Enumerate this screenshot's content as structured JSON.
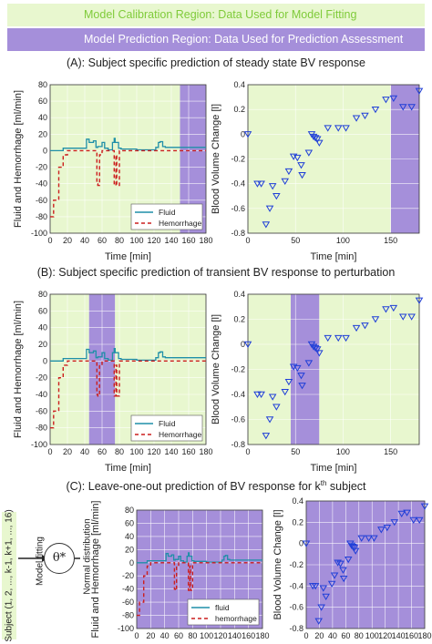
{
  "legend": {
    "calibration": "Model Calibration Region: Data Used for Model Fitting",
    "prediction": "Model Prediction Region: Data Used for Prediction Assessment"
  },
  "colors": {
    "calibration_region": "#e8f7cf",
    "prediction_region": "#a58fda",
    "fluid": "#1f8fa8",
    "hemorrhage": "#cc1f1f",
    "blood_volume_marker": "#1f3fd8"
  },
  "sections": {
    "a_title": "(A): Subject specific prediction of steady state BV response",
    "b_title": "(B): Subject specific prediction of transient BV response to perturbation",
    "c_title_prefix": "(C): Leave-one-out prediction of BV response for k",
    "c_title_sup": "th",
    "c_title_suffix": " subject"
  },
  "schematic": {
    "subjects": "Subject (1, 2, ..., k-1, k+1, ..., 16)",
    "model_fitting": "Model fitting",
    "theta": "θ*",
    "normal_distribution": "Normal distribution"
  },
  "chart_data": [
    {
      "id": "a_left",
      "type": "line",
      "ylabel": "Fluid and Hemorrhage [ml/min]",
      "xlabel": "Time [min]",
      "xlim": [
        0,
        180
      ],
      "ylim": [
        -100,
        80
      ],
      "xticks": [
        "0",
        "20",
        "40",
        "60",
        "80",
        "100",
        "120",
        "140",
        "160",
        "180"
      ],
      "yticks": [
        "-100",
        "-80",
        "-60",
        "-40",
        "-20",
        "0",
        "20",
        "40",
        "60",
        "80"
      ],
      "regions": [
        {
          "kind": "calibration",
          "x": [
            0,
            150
          ]
        },
        {
          "kind": "prediction",
          "x": [
            150,
            180
          ]
        }
      ],
      "legend": {
        "position": "bottom-right",
        "entries": [
          "Fluid",
          "Hemorrhage"
        ]
      },
      "series": [
        {
          "name": "Fluid",
          "style": "solid",
          "x": [
            0,
            15,
            15,
            42,
            42,
            45,
            45,
            50,
            50,
            53,
            53,
            55,
            55,
            60,
            60,
            63,
            63,
            67,
            67,
            72,
            72,
            74,
            74,
            75,
            75,
            79,
            79,
            82,
            82,
            100,
            100,
            122,
            122,
            125,
            125,
            127,
            127,
            130,
            130,
            133,
            133,
            180
          ],
          "y": [
            0,
            0,
            3,
            3,
            14,
            14,
            10,
            10,
            12,
            12,
            4,
            4,
            5,
            5,
            10,
            10,
            3,
            3,
            1,
            1,
            10,
            10,
            15,
            15,
            10,
            10,
            3,
            3,
            2,
            2,
            1,
            1,
            4,
            4,
            10,
            10,
            11,
            11,
            5,
            5,
            4,
            4
          ]
        },
        {
          "name": "Hemorrhage",
          "style": "dashed",
          "x": [
            0,
            4,
            4,
            10,
            10,
            15,
            15,
            20,
            20,
            54,
            54,
            55,
            55,
            57,
            57,
            60,
            60,
            74,
            74,
            76,
            76,
            77,
            77,
            80,
            80,
            180
          ],
          "y": [
            -80,
            -80,
            -60,
            -60,
            -20,
            -20,
            -5,
            -5,
            0,
            0,
            -40,
            -40,
            -42,
            -42,
            -5,
            -5,
            0,
            0,
            -42,
            -42,
            -5,
            -5,
            -42,
            -42,
            0,
            0
          ]
        }
      ]
    },
    {
      "id": "a_right",
      "type": "scatter",
      "ylabel": "Blood Volume Change [l]",
      "xlabel": "Time [min]",
      "xlim": [
        0,
        180
      ],
      "ylim": [
        -0.8,
        0.4
      ],
      "xticks": [
        "0",
        "50",
        "100",
        "150"
      ],
      "yticks": [
        "-0.8",
        "-0.6",
        "-0.4",
        "-0.2",
        "0",
        "0.2",
        "0.4"
      ],
      "regions": [
        {
          "kind": "calibration",
          "x": [
            0,
            150
          ]
        },
        {
          "kind": "prediction",
          "x": [
            150,
            180
          ]
        }
      ],
      "series": [
        {
          "name": "",
          "marker": "triangle-down",
          "x": [
            0,
            10,
            14,
            19,
            23,
            26,
            30,
            39,
            43,
            48,
            52,
            56,
            57,
            64,
            67,
            69,
            71,
            73,
            75,
            84,
            95,
            103,
            114,
            123,
            134,
            145,
            153,
            163,
            172,
            180
          ],
          "y": [
            0,
            -0.4,
            -0.4,
            -0.73,
            -0.6,
            -0.42,
            -0.5,
            -0.38,
            -0.3,
            -0.18,
            -0.19,
            -0.25,
            -0.33,
            -0.15,
            0,
            -0.02,
            -0.03,
            -0.04,
            -0.07,
            0.05,
            0.05,
            0.05,
            0.13,
            0.15,
            0.2,
            0.28,
            0.29,
            0.22,
            0.22,
            0.35
          ]
        }
      ]
    },
    {
      "id": "b_left",
      "type": "line",
      "ylabel": "Fluid and Hemorrhage [ml/min]",
      "xlabel": "Time [min]",
      "xlim": [
        0,
        180
      ],
      "ylim": [
        -100,
        80
      ],
      "xticks": [
        "0",
        "20",
        "40",
        "60",
        "80",
        "100",
        "120",
        "140",
        "160",
        "180"
      ],
      "yticks": [
        "-100",
        "-80",
        "-60",
        "-40",
        "-20",
        "0",
        "20",
        "40",
        "60",
        "80"
      ],
      "regions": [
        {
          "kind": "calibration",
          "x": [
            0,
            45
          ]
        },
        {
          "kind": "prediction",
          "x": [
            45,
            75
          ]
        },
        {
          "kind": "calibration",
          "x": [
            75,
            180
          ]
        }
      ],
      "legend": {
        "position": "bottom-right",
        "entries": [
          "Fluid",
          "Hemorrhage"
        ]
      },
      "series": [
        {
          "name": "Fluid",
          "style": "solid",
          "x": [
            0,
            15,
            15,
            42,
            42,
            45,
            45,
            50,
            50,
            53,
            53,
            55,
            55,
            60,
            60,
            63,
            63,
            67,
            67,
            72,
            72,
            74,
            74,
            75,
            75,
            79,
            79,
            82,
            82,
            100,
            100,
            122,
            122,
            125,
            125,
            127,
            127,
            130,
            130,
            133,
            133,
            180
          ],
          "y": [
            0,
            0,
            3,
            3,
            14,
            14,
            10,
            10,
            12,
            12,
            4,
            4,
            5,
            5,
            10,
            10,
            3,
            3,
            1,
            1,
            10,
            10,
            15,
            15,
            10,
            10,
            3,
            3,
            2,
            2,
            1,
            1,
            4,
            4,
            10,
            10,
            11,
            11,
            5,
            5,
            4,
            4
          ]
        },
        {
          "name": "Hemorrhage",
          "style": "dashed",
          "x": [
            0,
            4,
            4,
            10,
            10,
            15,
            15,
            20,
            20,
            54,
            54,
            55,
            55,
            57,
            57,
            60,
            60,
            74,
            74,
            76,
            76,
            77,
            77,
            80,
            80,
            180
          ],
          "y": [
            -80,
            -80,
            -60,
            -60,
            -20,
            -20,
            -5,
            -5,
            0,
            0,
            -40,
            -40,
            -42,
            -42,
            -5,
            -5,
            0,
            0,
            -42,
            -42,
            -5,
            -5,
            -42,
            -42,
            0,
            0
          ]
        }
      ]
    },
    {
      "id": "b_right",
      "type": "scatter",
      "ylabel": "Blood Volume Change [l]",
      "xlabel": "Time [min]",
      "xlim": [
        0,
        180
      ],
      "ylim": [
        -0.8,
        0.4
      ],
      "xticks": [
        "0",
        "50",
        "100",
        "150"
      ],
      "yticks": [
        "-0.8",
        "-0.6",
        "-0.4",
        "-0.2",
        "0",
        "0.2",
        "0.4"
      ],
      "regions": [
        {
          "kind": "calibration",
          "x": [
            0,
            45
          ]
        },
        {
          "kind": "prediction",
          "x": [
            45,
            75
          ]
        },
        {
          "kind": "calibration",
          "x": [
            75,
            180
          ]
        }
      ],
      "series": [
        {
          "name": "",
          "marker": "triangle-down",
          "x": [
            0,
            10,
            14,
            19,
            23,
            26,
            30,
            39,
            43,
            48,
            52,
            56,
            57,
            64,
            67,
            69,
            71,
            73,
            75,
            84,
            95,
            103,
            114,
            123,
            134,
            145,
            153,
            163,
            172,
            180
          ],
          "y": [
            0,
            -0.4,
            -0.4,
            -0.73,
            -0.6,
            -0.42,
            -0.5,
            -0.38,
            -0.3,
            -0.18,
            -0.19,
            -0.25,
            -0.33,
            -0.15,
            0,
            -0.02,
            -0.03,
            -0.04,
            -0.07,
            0.05,
            0.05,
            0.05,
            0.13,
            0.15,
            0.2,
            0.28,
            0.29,
            0.22,
            0.22,
            0.35
          ]
        }
      ]
    },
    {
      "id": "c_left",
      "type": "line",
      "ylabel": "Fluid and Hemorrhage [ml/min]",
      "xlabel": "Time [min]",
      "xlim": [
        0,
        180
      ],
      "ylim": [
        -100,
        80
      ],
      "xticks": [
        "0",
        "20",
        "40",
        "60",
        "80",
        "100",
        "120",
        "140",
        "160",
        "180"
      ],
      "yticks": [
        "-100",
        "-80",
        "-60",
        "-40",
        "-20",
        "0",
        "20",
        "40",
        "60",
        "80"
      ],
      "regions": [
        {
          "kind": "prediction",
          "x": [
            0,
            180
          ]
        }
      ],
      "legend": {
        "position": "bottom-right",
        "entries": [
          "fluid",
          "hemorrhage"
        ]
      },
      "series": [
        {
          "name": "fluid",
          "style": "solid",
          "x": [
            0,
            15,
            15,
            42,
            42,
            45,
            45,
            50,
            50,
            53,
            53,
            55,
            55,
            60,
            60,
            63,
            63,
            67,
            67,
            72,
            72,
            74,
            74,
            75,
            75,
            79,
            79,
            82,
            82,
            100,
            100,
            122,
            122,
            125,
            125,
            127,
            127,
            130,
            130,
            133,
            133,
            180
          ],
          "y": [
            0,
            0,
            3,
            3,
            14,
            14,
            10,
            10,
            12,
            12,
            4,
            4,
            5,
            5,
            10,
            10,
            3,
            3,
            1,
            1,
            10,
            10,
            15,
            15,
            10,
            10,
            3,
            3,
            2,
            2,
            1,
            1,
            4,
            4,
            10,
            10,
            11,
            11,
            5,
            5,
            4,
            4
          ]
        },
        {
          "name": "hemorrhage",
          "style": "dashed",
          "x": [
            0,
            4,
            4,
            10,
            10,
            15,
            15,
            20,
            20,
            54,
            54,
            55,
            55,
            57,
            57,
            60,
            60,
            74,
            74,
            76,
            76,
            77,
            77,
            80,
            80,
            180
          ],
          "y": [
            -80,
            -80,
            -60,
            -60,
            -20,
            -20,
            -5,
            -5,
            0,
            0,
            -40,
            -40,
            -42,
            -42,
            -5,
            -5,
            0,
            0,
            -42,
            -42,
            -5,
            -5,
            -42,
            -42,
            0,
            0
          ]
        }
      ]
    },
    {
      "id": "c_right",
      "type": "scatter",
      "ylabel": "Blood Volume Change [l]",
      "xlabel": "Time [min]",
      "xlim": [
        0,
        180
      ],
      "ylim": [
        -0.8,
        0.4
      ],
      "xticks": [
        "0",
        "20",
        "40",
        "60",
        "80",
        "100",
        "120",
        "140",
        "160",
        "180"
      ],
      "yticks": [
        "-0.8",
        "-0.6",
        "-0.4",
        "-0.2",
        "0",
        "0.2",
        "0.4"
      ],
      "regions": [
        {
          "kind": "prediction",
          "x": [
            0,
            180
          ]
        }
      ],
      "series": [
        {
          "name": "",
          "marker": "triangle-down",
          "x": [
            0,
            10,
            14,
            19,
            23,
            26,
            30,
            39,
            43,
            48,
            52,
            56,
            57,
            64,
            67,
            69,
            71,
            73,
            75,
            84,
            95,
            103,
            114,
            123,
            134,
            145,
            153,
            163,
            172,
            180
          ],
          "y": [
            0,
            -0.4,
            -0.4,
            -0.73,
            -0.6,
            -0.42,
            -0.5,
            -0.38,
            -0.3,
            -0.18,
            -0.19,
            -0.25,
            -0.33,
            -0.15,
            0,
            -0.02,
            -0.03,
            -0.04,
            -0.07,
            0.05,
            0.05,
            0.05,
            0.13,
            0.15,
            0.2,
            0.28,
            0.29,
            0.22,
            0.22,
            0.35
          ]
        }
      ]
    }
  ]
}
